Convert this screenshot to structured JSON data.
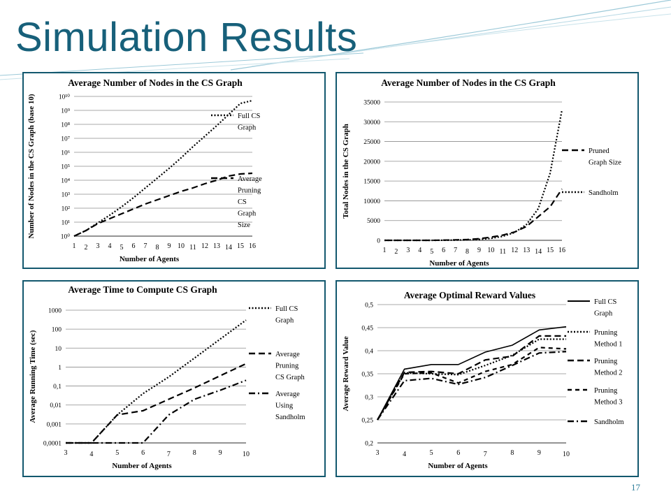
{
  "slide": {
    "title": "Simulation Results",
    "page_number": "17"
  },
  "colors": {
    "title": "#17607a",
    "panel_border": "#13586e",
    "series": "#000000",
    "grid": "#8c8c8c"
  },
  "chart_data": [
    {
      "type": "line",
      "title": "Average Number of Nodes in the CS Graph",
      "xlabel": "Number of Agents",
      "ylabel": "Number of Nodes in the CS Graph (base 10)",
      "scale": "log",
      "x": [
        "1",
        "2",
        "3",
        "4",
        "5",
        "6",
        "7",
        "8",
        "9",
        "10",
        "11",
        "12",
        "13",
        "14",
        "15",
        "16"
      ],
      "ylim": [
        0,
        10
      ],
      "yticks": [
        "10⁰",
        "10¹",
        "10²",
        "10³",
        "10⁴",
        "10⁵",
        "10⁶",
        "10⁷",
        "10⁸",
        "10⁹",
        "10¹⁰"
      ],
      "legend_position": "right",
      "series": [
        {
          "name": "Full CS Graph",
          "dash": "dot",
          "values": [
            0,
            0.4,
            0.95,
            1.5,
            2.1,
            2.75,
            3.45,
            4.15,
            4.85,
            5.6,
            6.4,
            7.15,
            7.9,
            8.7,
            9.5,
            9.7
          ]
        },
        {
          "name": "Average Pruning CS Graph Size",
          "dash": "dash",
          "values": [
            0,
            0.4,
            0.9,
            1.25,
            1.6,
            1.95,
            2.3,
            2.6,
            2.9,
            3.2,
            3.45,
            3.75,
            4.0,
            4.3,
            4.45,
            4.5
          ]
        }
      ]
    },
    {
      "type": "line",
      "title": "Average Number of Nodes in the CS Graph",
      "xlabel": "Number of Agents",
      "ylabel": "Total Nodes in the CS Graph",
      "x": [
        "1",
        "2",
        "3",
        "4",
        "5",
        "6",
        "7",
        "8",
        "9",
        "10",
        "11",
        "12",
        "13",
        "14",
        "15",
        "16"
      ],
      "ylim": [
        0,
        35000
      ],
      "yticks": [
        "0",
        "5000",
        "10000",
        "15000",
        "20000",
        "25000",
        "30000",
        "35000"
      ],
      "legend_position": "right",
      "series": [
        {
          "name": "Pruned Graph Size",
          "dash": "dash",
          "values": [
            0,
            0,
            0,
            0,
            0,
            50,
            100,
            200,
            400,
            800,
            1300,
            2100,
            3500,
            6000,
            8500,
            13000
          ]
        },
        {
          "name": "Sandholm",
          "dash": "dot",
          "values": [
            0,
            0,
            0,
            0,
            0,
            20,
            50,
            100,
            250,
            500,
            1000,
            2000,
            4000,
            8000,
            17000,
            33000
          ]
        }
      ]
    },
    {
      "type": "line",
      "title": "Average Time to Compute CS Graph",
      "xlabel": "Number of Agents",
      "ylabel": "Average Running Time (sec)",
      "scale": "log",
      "x": [
        "3",
        "4",
        "5",
        "6",
        "7",
        "8",
        "9",
        "10"
      ],
      "ylim": [
        0.0001,
        1000
      ],
      "yticks": [
        "0,0001",
        "0,001",
        "0,01",
        "0,1",
        "1",
        "10",
        "100",
        "1000"
      ],
      "legend_position": "right",
      "series": [
        {
          "name": "Full CS Graph",
          "dash": "dot",
          "values": [
            0.0001,
            0.0001,
            0.003,
            0.04,
            0.3,
            3,
            30,
            300
          ]
        },
        {
          "name": "Average Pruning CS Graph",
          "dash": "dash",
          "values": [
            0.0001,
            0.0001,
            0.003,
            0.005,
            0.02,
            0.08,
            0.35,
            1.5
          ]
        },
        {
          "name": "Average Using Sandholm",
          "dash": "dashdot",
          "values": [
            0.0001,
            0.0001,
            0.0001,
            0.0001,
            0.003,
            0.02,
            0.06,
            0.2
          ]
        }
      ]
    },
    {
      "type": "line",
      "title": "Average Optimal Reward Values",
      "xlabel": "Number of Agents",
      "ylabel": "Average Reward Value",
      "x": [
        "3",
        "4",
        "5",
        "6",
        "7",
        "8",
        "9",
        "10"
      ],
      "ylim": [
        0.2,
        0.5
      ],
      "yticks": [
        "0,2",
        "0,25",
        "0,3",
        "0,35",
        "0,4",
        "0,45",
        "0,5"
      ],
      "legend_position": "right",
      "series": [
        {
          "name": "Full CS Graph",
          "dash": "solid",
          "values": [
            0.25,
            0.36,
            0.37,
            0.37,
            0.397,
            0.412,
            0.445,
            0.452
          ]
        },
        {
          "name": "Pruning Method 1",
          "dash": "dot",
          "values": [
            0.25,
            0.352,
            0.35,
            0.348,
            0.368,
            0.39,
            0.425,
            0.425
          ]
        },
        {
          "name": "Pruning Method 2",
          "dash": "dash",
          "values": [
            0.25,
            0.353,
            0.355,
            0.35,
            0.38,
            0.388,
            0.432,
            0.432
          ]
        },
        {
          "name": "Pruning Method 3",
          "dash": "dash2",
          "values": [
            0.25,
            0.35,
            0.352,
            0.33,
            0.355,
            0.37,
            0.407,
            0.404
          ]
        },
        {
          "name": "Sandholm",
          "dash": "dashdot",
          "values": [
            0.25,
            0.335,
            0.34,
            0.327,
            0.342,
            0.368,
            0.395,
            0.398
          ]
        }
      ]
    }
  ]
}
